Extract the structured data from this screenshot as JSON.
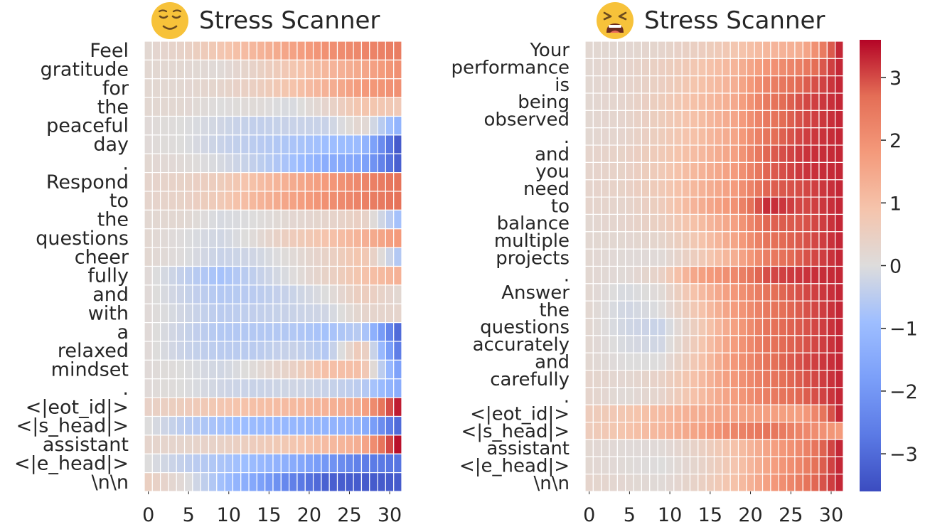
{
  "colors": {
    "min": "#3b4cc0",
    "mid": "#dddcdc",
    "max": "#b40426",
    "text": "#262626"
  },
  "icons": {
    "left_title_icon": "relieved-face-icon",
    "right_title_icon": "tired-face-icon"
  },
  "colorbar": {
    "vmin": -3.6,
    "vmax": 3.6,
    "tick_labels": [
      "3",
      "2",
      "1",
      "0",
      "−1",
      "−2",
      "−3"
    ]
  },
  "chart_data": [
    {
      "type": "heatmap",
      "title": "Stress Scanner",
      "tokens": [
        "Feel",
        "gratitude",
        "for",
        "the",
        "peaceful",
        "day",
        ".",
        "Respond",
        "to",
        "the",
        "questions",
        "cheer",
        "fully",
        "and",
        "with",
        "a",
        "relaxed",
        "mindset",
        ".",
        "<|eot_id|>",
        "<|s_head|>",
        "assistant",
        "<|e_head|>",
        "\\n\\n"
      ],
      "x_tick_labels": [
        "0",
        "5",
        "10",
        "15",
        "20",
        "25",
        "30"
      ],
      "n_layers": 32,
      "value_profiles": [
        [
          0.2,
          0.4,
          0.8,
          1.2,
          1.6,
          2.0,
          2.2,
          2.4
        ],
        [
          0.2,
          0.2,
          0.1,
          0.4,
          0.8,
          1.2,
          1.5,
          2.0
        ],
        [
          0.2,
          0.2,
          0.3,
          0.5,
          0.9,
          1.3,
          1.8,
          2.0
        ],
        [
          0.2,
          0.2,
          0.0,
          0.1,
          -0.1,
          0.3,
          0.9,
          0.7
        ],
        [
          0.1,
          0.0,
          -0.2,
          -0.4,
          -0.3,
          -0.3,
          0.3,
          -1.2
        ],
        [
          0.1,
          0.0,
          -0.3,
          -0.5,
          -0.7,
          -0.9,
          -1.0,
          -3.3
        ],
        [
          0.2,
          0.1,
          -0.1,
          -0.4,
          -0.8,
          -1.4,
          -1.6,
          -3.2
        ],
        [
          0.3,
          0.4,
          0.6,
          1.0,
          1.4,
          1.8,
          2.2,
          2.6
        ],
        [
          0.3,
          0.4,
          0.7,
          1.2,
          1.6,
          2.0,
          2.3,
          2.6
        ],
        [
          0.2,
          0.2,
          -0.1,
          0.0,
          0.2,
          0.3,
          0.5,
          -0.8
        ],
        [
          0.2,
          0.0,
          -0.2,
          0.1,
          0.6,
          0.9,
          1.3,
          1.8
        ],
        [
          0.2,
          0.0,
          -0.3,
          -0.2,
          0.1,
          0.4,
          0.9,
          -0.6
        ],
        [
          0.1,
          -0.4,
          -0.8,
          -0.4,
          0.0,
          0.4,
          0.9,
          1.3
        ],
        [
          0.1,
          -0.3,
          -0.6,
          -0.5,
          -0.3,
          0.0,
          0.6,
          0.2
        ],
        [
          0.1,
          -0.2,
          -0.5,
          -0.4,
          -0.3,
          -0.2,
          0.3,
          0.3
        ],
        [
          0.1,
          -0.3,
          -0.6,
          -0.6,
          -0.6,
          -0.8,
          -0.5,
          -3.0
        ],
        [
          0.1,
          -0.3,
          -0.5,
          -0.5,
          -0.3,
          -0.6,
          0.8,
          -2.6
        ],
        [
          0.1,
          0.0,
          -0.2,
          0.1,
          0.4,
          1.0,
          1.0,
          -1.7
        ],
        [
          0.1,
          0.0,
          -0.2,
          -0.3,
          -0.2,
          -0.3,
          -0.5,
          -1.4
        ],
        [
          0.4,
          0.6,
          0.8,
          1.0,
          1.1,
          1.3,
          1.5,
          3.4
        ],
        [
          0.0,
          -0.5,
          -0.8,
          -1.0,
          -1.1,
          -1.2,
          -1.3,
          -3.0
        ],
        [
          0.3,
          0.3,
          0.4,
          0.6,
          0.8,
          1.1,
          1.4,
          3.5
        ],
        [
          0.0,
          -0.4,
          -0.7,
          -1.0,
          -1.4,
          -2.0,
          -2.6,
          -2.8
        ],
        [
          0.5,
          0.1,
          -0.8,
          -1.6,
          -2.5,
          -3.2,
          -3.3,
          -3.3
        ]
      ]
    },
    {
      "type": "heatmap",
      "title": "Stress Scanner",
      "tokens": [
        "Your",
        "performance",
        "is",
        "being",
        "observed",
        ".",
        "and",
        "you",
        "need",
        "to",
        "balance",
        "multiple",
        "projects",
        ".",
        "Answer",
        "the",
        "questions",
        "accurately",
        "and",
        "carefully",
        ".",
        "<|eot_id|>",
        "<|s_head|>",
        "assistant",
        "<|e_head|>",
        "\\n\\n"
      ],
      "x_tick_labels": [
        "0",
        "5",
        "10",
        "15",
        "20",
        "25",
        "30"
      ],
      "n_layers": 32,
      "value_profiles": [
        [
          0.2,
          0.2,
          0.3,
          0.5,
          0.8,
          1.2,
          1.4,
          3.3
        ],
        [
          0.2,
          0.3,
          0.5,
          0.8,
          1.2,
          1.9,
          2.4,
          3.3
        ],
        [
          0.2,
          0.3,
          0.5,
          0.9,
          1.3,
          2.3,
          2.8,
          3.3
        ],
        [
          0.2,
          0.3,
          0.6,
          1.0,
          1.4,
          2.5,
          3.0,
          3.3
        ],
        [
          0.2,
          0.3,
          0.6,
          1.0,
          1.5,
          2.5,
          3.0,
          3.3
        ],
        [
          0.2,
          0.3,
          0.6,
          1.0,
          1.5,
          2.6,
          3.1,
          3.3
        ],
        [
          0.3,
          0.4,
          0.7,
          1.1,
          1.6,
          2.8,
          3.2,
          3.3
        ],
        [
          0.3,
          0.4,
          0.7,
          1.2,
          1.7,
          2.8,
          3.2,
          3.3
        ],
        [
          0.3,
          0.4,
          0.7,
          1.2,
          1.7,
          2.8,
          3.0,
          3.3
        ],
        [
          0.3,
          0.3,
          0.6,
          1.3,
          1.9,
          3.3,
          3.0,
          3.3
        ],
        [
          0.2,
          0.3,
          0.5,
          1.0,
          1.6,
          2.8,
          2.9,
          3.3
        ],
        [
          0.2,
          0.2,
          0.3,
          0.8,
          1.5,
          2.6,
          2.9,
          3.3
        ],
        [
          0.2,
          0.1,
          0.1,
          0.6,
          1.3,
          2.4,
          2.9,
          3.3
        ],
        [
          0.2,
          0.1,
          0.4,
          1.6,
          2.1,
          3.0,
          3.2,
          3.3
        ],
        [
          0.2,
          -0.1,
          0.1,
          1.0,
          1.8,
          2.6,
          3.0,
          3.3
        ],
        [
          0.2,
          -0.2,
          0.0,
          0.8,
          1.7,
          2.5,
          2.9,
          3.3
        ],
        [
          0.2,
          -0.2,
          -0.3,
          0.6,
          1.6,
          2.6,
          2.9,
          3.3
        ],
        [
          0.2,
          -0.1,
          -0.2,
          0.7,
          1.7,
          2.6,
          2.9,
          3.3
        ],
        [
          0.2,
          0.0,
          0.0,
          0.8,
          1.8,
          2.6,
          3.0,
          3.3
        ],
        [
          0.3,
          0.2,
          0.4,
          1.0,
          1.8,
          2.5,
          2.9,
          3.3
        ],
        [
          0.3,
          0.1,
          0.3,
          1.0,
          1.7,
          2.4,
          2.8,
          3.3
        ],
        [
          0.6,
          0.8,
          1.1,
          1.4,
          1.6,
          1.7,
          1.7,
          3.3
        ],
        [
          0.6,
          0.9,
          1.2,
          1.6,
          2.2,
          2.6,
          2.2,
          1.8
        ],
        [
          0.2,
          0.1,
          0.1,
          0.4,
          0.9,
          1.6,
          2.2,
          3.3
        ],
        [
          0.2,
          0.1,
          0.0,
          0.3,
          0.8,
          1.6,
          2.3,
          3.3
        ],
        [
          0.3,
          0.2,
          0.1,
          0.4,
          0.9,
          1.7,
          2.5,
          3.3
        ]
      ]
    }
  ]
}
